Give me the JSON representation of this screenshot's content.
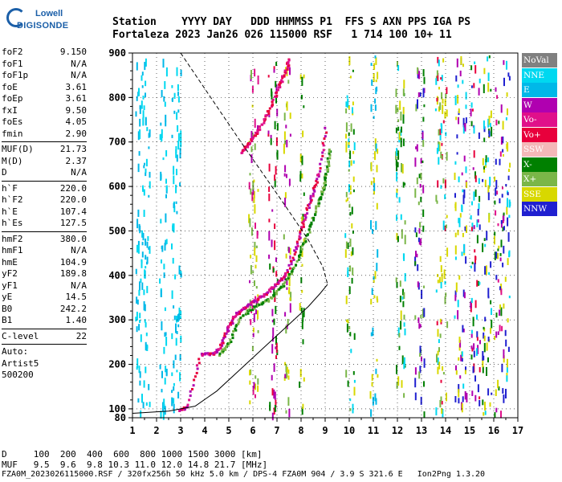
{
  "logo": {
    "line1": "Lowell",
    "line2": "DIGISONDE"
  },
  "header": {
    "line1": "Station    YYYY DAY   DDD HHMMSS P1  FFS S AXN PPS IGA PS",
    "line2": "Fortaleza 2023 Jan26 026 115000 RSF   1 714 100 10+ 11"
  },
  "params": [
    {
      "label": "foF2",
      "value": "9.150"
    },
    {
      "label": "foF1",
      "value": "N/A"
    },
    {
      "label": "foF1p",
      "value": "N/A"
    },
    {
      "label": "foE",
      "value": "3.61"
    },
    {
      "label": "foEp",
      "value": "3.61"
    },
    {
      "label": "fxI",
      "value": "9.50"
    },
    {
      "label": "foEs",
      "value": "4.05"
    },
    {
      "label": "fmin",
      "value": "2.90"
    },
    {
      "label": "MUF(D)",
      "value": "21.73"
    },
    {
      "label": "M(D)",
      "value": "2.37"
    },
    {
      "label": "D",
      "value": "N/A"
    },
    {
      "label": "h`F",
      "value": "220.0"
    },
    {
      "label": "h`F2",
      "value": "220.0"
    },
    {
      "label": "h`E",
      "value": "107.4"
    },
    {
      "label": "h`Es",
      "value": "127.5"
    },
    {
      "label": "hmF2",
      "value": "380.0"
    },
    {
      "label": "hmF1",
      "value": "N/A"
    },
    {
      "label": "hmE",
      "value": "104.9"
    },
    {
      "label": "yF2",
      "value": "189.8"
    },
    {
      "label": "yF1",
      "value": "N/A"
    },
    {
      "label": "yE",
      "value": "14.5"
    },
    {
      "label": "B0",
      "value": "242.2"
    },
    {
      "label": "B1",
      "value": "1.40"
    },
    {
      "label": "C-level",
      "value": "22"
    }
  ],
  "autoscale": {
    "line1": "Auto:",
    "line2": "Artist5",
    "line3": "500200"
  },
  "legend": [
    {
      "label": "NoVal",
      "color": "#808080"
    },
    {
      "label": "NNE",
      "color": "#00d8f0"
    },
    {
      "label": "E",
      "color": "#00b8e8"
    },
    {
      "label": "W",
      "color": "#b000b0"
    },
    {
      "label": "Vo-",
      "color": "#e0108a"
    },
    {
      "label": "Vo+",
      "color": "#e8003c"
    },
    {
      "label": "SSW",
      "color": "#f4b8b8"
    },
    {
      "label": "X-",
      "color": "#008000"
    },
    {
      "label": "X+",
      "color": "#7ab648"
    },
    {
      "label": "SSE",
      "color": "#d8d800"
    },
    {
      "label": "NNW",
      "color": "#2020d0"
    }
  ],
  "footer": {
    "line1": "D     100  200  400  600  800 1000 1500 3000 [km]",
    "line2": "MUF   9.5  9.6  9.8 10.3 11.0 12.0 14.8 21.7 [MHz]",
    "line3": "FZA0M_2023026115000.RSF / 320fx256h 50 kHz 5.0 km / DPS-4 FZA0M 904 / 3.9 S 321.6 E   Ion2Png 1.3.20"
  },
  "chart_data": {
    "type": "scatter",
    "xlim": [
      1,
      17
    ],
    "ylim": [
      80,
      900
    ],
    "xticks": [
      1,
      2,
      3,
      4,
      5,
      6,
      7,
      8,
      9,
      10,
      11,
      12,
      13,
      14,
      15,
      16,
      17
    ],
    "yticks": [
      100,
      200,
      300,
      400,
      500,
      600,
      700,
      800,
      900
    ],
    "series": [
      {
        "name": "Vo+",
        "points": [
          [
            2.9,
            100
          ],
          [
            3.2,
            105
          ],
          [
            3.8,
            225
          ],
          [
            4.3,
            225
          ],
          [
            4.6,
            240
          ],
          [
            4.9,
            280
          ],
          [
            5.2,
            310
          ],
          [
            5.6,
            330
          ],
          [
            6.0,
            345
          ],
          [
            6.5,
            360
          ],
          [
            7.0,
            385
          ],
          [
            7.4,
            410
          ],
          [
            7.8,
            470
          ],
          [
            8.1,
            530
          ],
          [
            8.4,
            580
          ],
          [
            8.7,
            630
          ],
          [
            9.0,
            740
          ]
        ]
      },
      {
        "name": "X-",
        "points": [
          [
            4.6,
            225
          ],
          [
            5.0,
            255
          ],
          [
            5.5,
            310
          ],
          [
            6.1,
            335
          ],
          [
            6.7,
            350
          ],
          [
            7.2,
            380
          ],
          [
            7.7,
            420
          ],
          [
            8.1,
            475
          ],
          [
            8.4,
            520
          ],
          [
            8.7,
            570
          ],
          [
            8.9,
            600
          ],
          [
            9.05,
            640
          ],
          [
            9.15,
            690
          ]
        ]
      },
      {
        "name": "Vo-",
        "points": [
          [
            5.5,
            680
          ],
          [
            5.8,
            700
          ],
          [
            6.2,
            730
          ],
          [
            6.6,
            770
          ],
          [
            7.0,
            820
          ],
          [
            7.3,
            860
          ],
          [
            7.5,
            890
          ]
        ]
      }
    ],
    "profile_true_height": [
      [
        1,
        90
      ],
      [
        2.5,
        95
      ],
      [
        3.6,
        106
      ],
      [
        4.5,
        140
      ],
      [
        5.5,
        190
      ],
      [
        6.5,
        240
      ],
      [
        7.5,
        290
      ],
      [
        8.3,
        330
      ],
      [
        8.8,
        360
      ],
      [
        9.1,
        380
      ]
    ],
    "profile_extrapolated": [
      [
        3.0,
        900
      ],
      [
        5.5,
        700
      ],
      [
        7.3,
        560
      ],
      [
        8.3,
        480
      ],
      [
        8.9,
        420
      ],
      [
        9.1,
        380
      ]
    ]
  }
}
